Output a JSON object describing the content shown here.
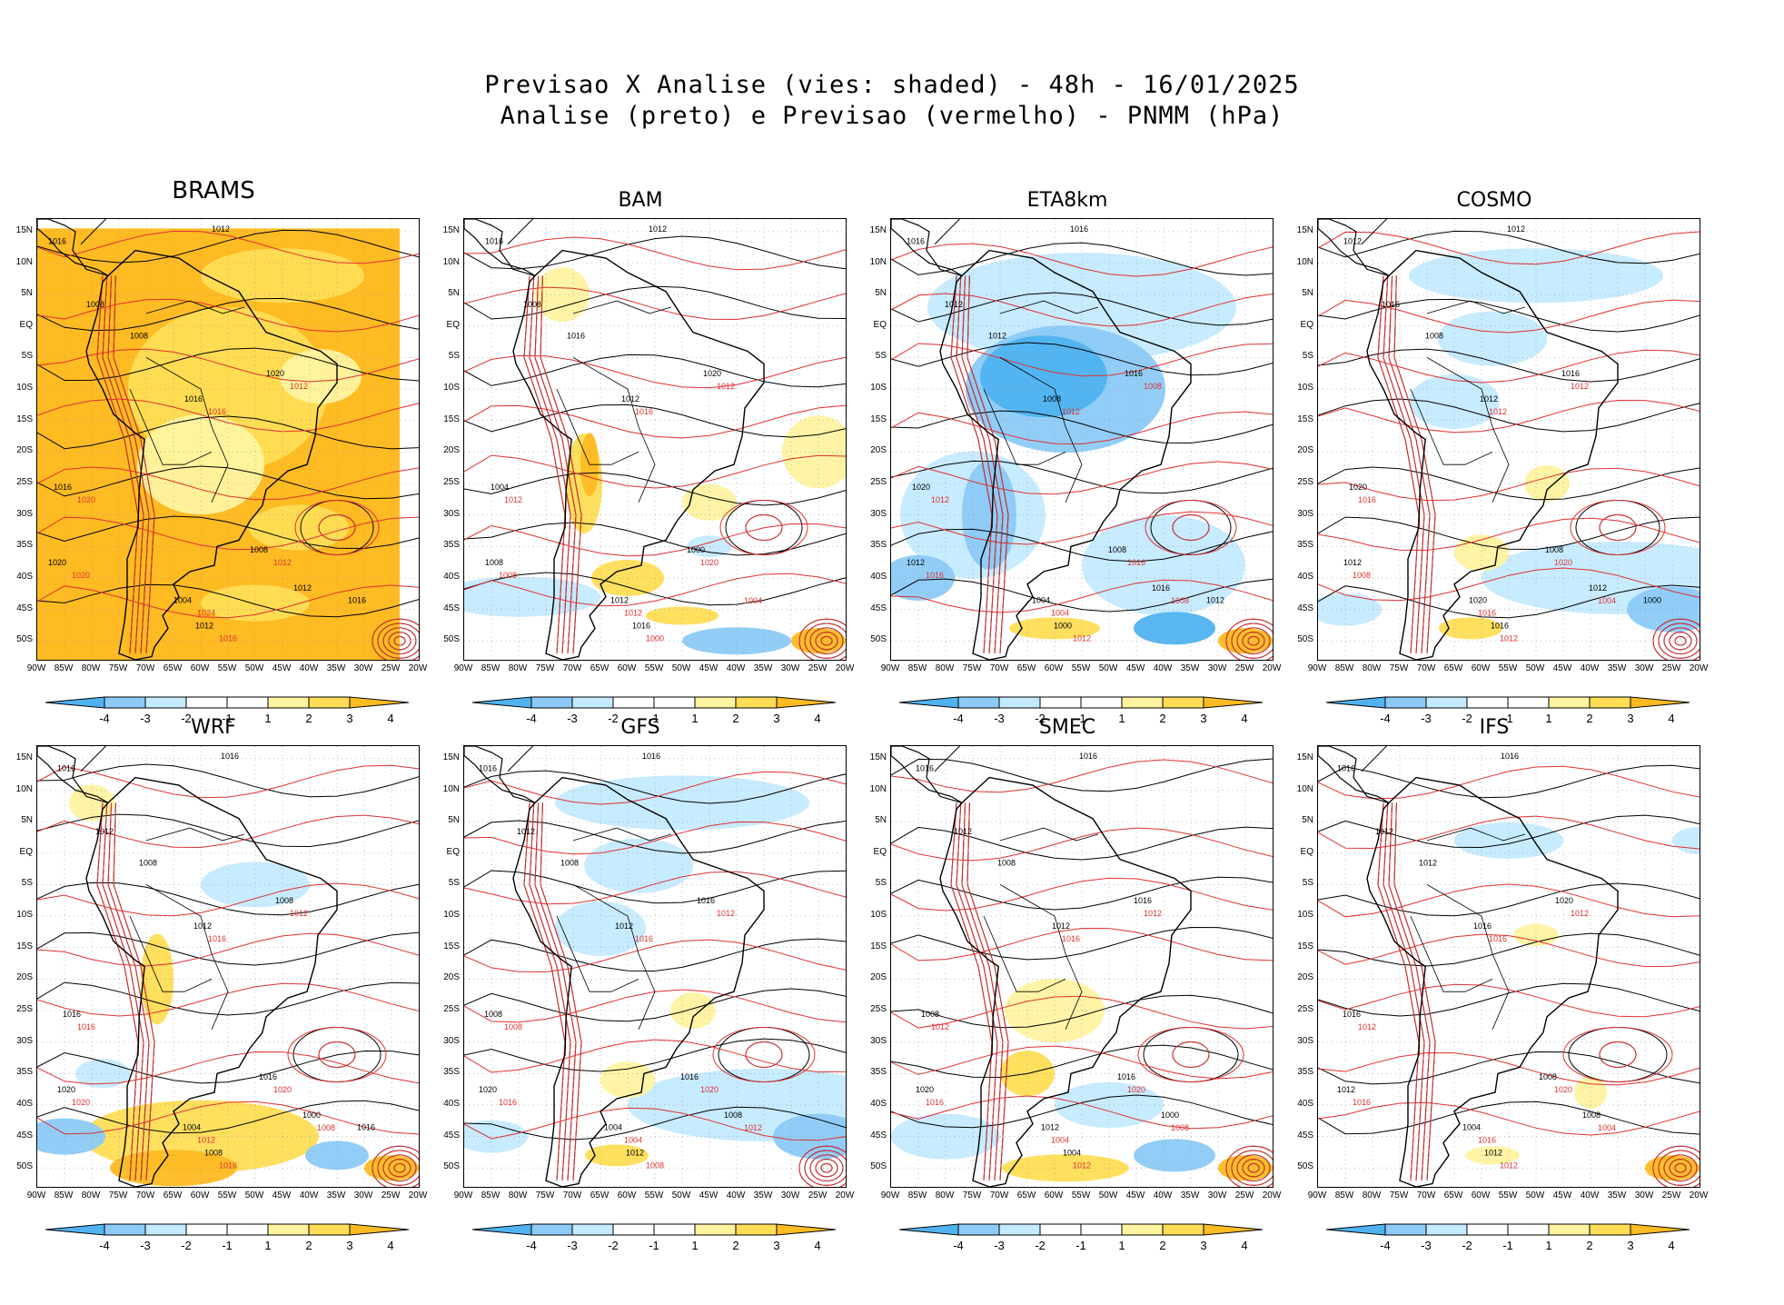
{
  "header": {
    "line1": "Previsao X Analise (vies: shaded) - 48h - 16/01/2025",
    "line2": "Analise (preto) e Previsao (vermelho) - PNMM (hPa)"
  },
  "colors": {
    "neg4": "#4fb3f0",
    "neg3": "#8ccaf7",
    "neg2": "#c4eaff",
    "neutral": "#ffffff",
    "pos1": "#fff3a0",
    "pos2": "#ffdd55",
    "pos3": "#ffbb22",
    "analysis_contour": "#000000",
    "forecast_contour": "#e03030"
  },
  "axes": {
    "lat_labels": [
      "15N",
      "10N",
      "5N",
      "EQ",
      "5S",
      "10S",
      "15S",
      "20S",
      "25S",
      "30S",
      "35S",
      "40S",
      "45S",
      "50S"
    ],
    "lon_labels": [
      "90W",
      "85W",
      "80W",
      "75W",
      "70W",
      "65W",
      "60W",
      "55W",
      "50W",
      "45W",
      "40W",
      "35W",
      "30W",
      "25W",
      "20W"
    ]
  },
  "colorbar": {
    "labels": [
      "-4",
      "-3",
      "-2",
      "-1",
      "1",
      "2",
      "3",
      "4"
    ]
  },
  "panels": [
    {
      "name": "BRAMS",
      "bias": "pos-strong",
      "analysis_labels": [
        "1016",
        "1012",
        "1008",
        "1008",
        "1016",
        "1020",
        "1016",
        "1020",
        "1008",
        "1004",
        "1012",
        "1012",
        "1016"
      ],
      "forecast_labels": [
        "1016",
        "1012",
        "1020",
        "1020",
        "1012",
        "1024",
        "1016"
      ]
    },
    {
      "name": "BAM",
      "bias": "pos-mild",
      "analysis_labels": [
        "1016",
        "1012",
        "1008",
        "1016",
        "1012",
        "1020",
        "1004",
        "1008",
        "1000",
        "1012",
        "1016"
      ],
      "forecast_labels": [
        "1016",
        "1012",
        "1012",
        "1008",
        "1020",
        "1012",
        "1000",
        "1004"
      ]
    },
    {
      "name": "ETA8km",
      "bias": "neg-strong",
      "analysis_labels": [
        "1016",
        "1016",
        "1012",
        "1012",
        "1008",
        "1016",
        "1020",
        "1012",
        "1008",
        "1004",
        "1000",
        "1016",
        "1012"
      ],
      "forecast_labels": [
        "1012",
        "1008",
        "1012",
        "1016",
        "1016",
        "1004",
        "1012",
        "1008"
      ]
    },
    {
      "name": "COSMO",
      "bias": "neg-mild",
      "analysis_labels": [
        "1012",
        "1012",
        "1016",
        "1008",
        "1012",
        "1016",
        "1020",
        "1012",
        "1008",
        "1020",
        "1016",
        "1012",
        "1000"
      ],
      "forecast_labels": [
        "1012",
        "1012",
        "1016",
        "1008",
        "1020",
        "1016",
        "1012",
        "1004"
      ]
    },
    {
      "name": "WRF",
      "bias": "pos-south",
      "analysis_labels": [
        "1016",
        "1016",
        "1012",
        "1008",
        "1012",
        "1008",
        "1016",
        "1020",
        "1016",
        "1004",
        "1008",
        "1000",
        "1016"
      ],
      "forecast_labels": [
        "1016",
        "1012",
        "1016",
        "1020",
        "1020",
        "1012",
        "1016",
        "1008"
      ]
    },
    {
      "name": "GFS",
      "bias": "neg-mild",
      "analysis_labels": [
        "1016",
        "1016",
        "1012",
        "1008",
        "1012",
        "1016",
        "1008",
        "1020",
        "1016",
        "1004",
        "1012",
        "1008"
      ],
      "forecast_labels": [
        "1016",
        "1012",
        "1008",
        "1016",
        "1020",
        "1004",
        "1008",
        "1012"
      ]
    },
    {
      "name": "SMEC",
      "bias": "mixed",
      "analysis_labels": [
        "1016",
        "1016",
        "1012",
        "1008",
        "1012",
        "1016",
        "1008",
        "1020",
        "1016",
        "1012",
        "1004",
        "1000"
      ],
      "forecast_labels": [
        "1016",
        "1012",
        "1012",
        "1016",
        "1020",
        "1004",
        "1012",
        "1008"
      ]
    },
    {
      "name": "IFS",
      "bias": "low",
      "analysis_labels": [
        "1016",
        "1016",
        "1012",
        "1012",
        "1016",
        "1020",
        "1016",
        "1012",
        "1008",
        "1004",
        "1012",
        "1008"
      ],
      "forecast_labels": [
        "1016",
        "1012",
        "1012",
        "1016",
        "1020",
        "1016",
        "1012",
        "1004"
      ]
    }
  ]
}
